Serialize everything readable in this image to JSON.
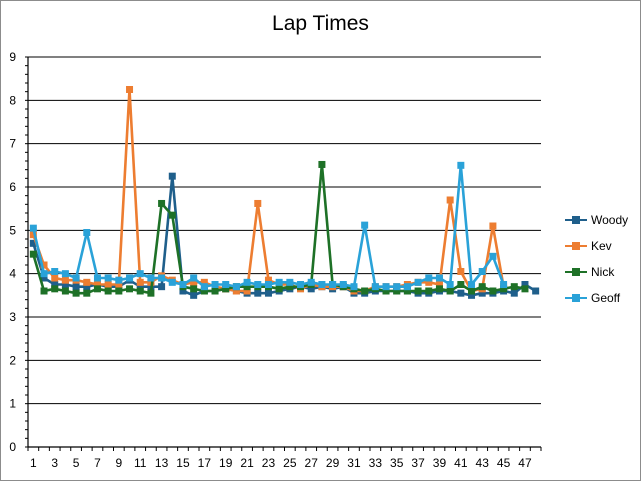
{
  "chart_data": {
    "type": "line",
    "title": "Lap Times",
    "xlabel": "",
    "ylabel": "",
    "ylim": [
      0,
      9
    ],
    "y_ticks": [
      "0",
      "1",
      "2",
      "3",
      "4",
      "5",
      "6",
      "7",
      "8",
      "9"
    ],
    "x": [
      1,
      2,
      3,
      4,
      5,
      6,
      7,
      8,
      9,
      10,
      11,
      12,
      13,
      14,
      15,
      16,
      17,
      18,
      19,
      20,
      21,
      22,
      23,
      24,
      25,
      26,
      27,
      28,
      29,
      30,
      31,
      32,
      33,
      34,
      35,
      36,
      37,
      38,
      39,
      40,
      41,
      42,
      43,
      44,
      45,
      46,
      47,
      48
    ],
    "x_tick_labels": [
      "1",
      "3",
      "5",
      "7",
      "9",
      "11",
      "13",
      "15",
      "17",
      "19",
      "21",
      "23",
      "25",
      "27",
      "29",
      "31",
      "33",
      "35",
      "37",
      "39",
      "41",
      "43",
      "45",
      "47"
    ],
    "grid": "horizontal",
    "legend_position": "right",
    "series": [
      {
        "name": "Woody",
        "color": "#1f5f8b",
        "values": [
          4.7,
          3.9,
          3.75,
          3.75,
          3.7,
          3.7,
          3.75,
          3.7,
          3.7,
          3.85,
          3.7,
          3.7,
          3.7,
          6.25,
          3.6,
          3.5,
          3.6,
          3.6,
          3.65,
          3.6,
          3.55,
          3.55,
          3.55,
          3.6,
          3.65,
          3.7,
          3.65,
          3.7,
          3.65,
          3.7,
          3.55,
          3.55,
          3.6,
          3.6,
          3.6,
          3.6,
          3.55,
          3.55,
          3.6,
          3.6,
          3.55,
          3.5,
          3.55,
          3.55,
          3.6,
          3.55,
          3.75,
          3.6
        ]
      },
      {
        "name": "Kev",
        "color": "#ed7d31",
        "values": [
          4.9,
          4.2,
          3.9,
          3.85,
          3.85,
          3.8,
          3.75,
          3.75,
          3.75,
          8.25,
          3.8,
          3.8,
          3.95,
          3.85,
          3.75,
          3.8,
          3.8,
          3.7,
          3.65,
          3.6,
          3.6,
          5.62,
          3.85,
          3.75,
          3.75,
          3.65,
          3.75,
          3.7,
          3.7,
          3.7,
          3.6,
          3.6,
          3.7,
          3.7,
          3.7,
          3.75,
          3.8,
          3.8,
          3.75,
          5.7,
          4.05,
          3.6,
          3.65,
          5.1,
          3.7,
          null,
          null,
          null
        ]
      },
      {
        "name": "Nick",
        "color": "#1e7127",
        "values": [
          4.45,
          3.6,
          3.65,
          3.6,
          3.55,
          3.55,
          3.65,
          3.6,
          3.6,
          3.65,
          3.6,
          3.55,
          5.62,
          5.35,
          3.7,
          3.65,
          3.6,
          3.6,
          3.65,
          3.7,
          3.7,
          3.7,
          3.7,
          3.65,
          3.7,
          3.7,
          3.75,
          6.52,
          3.75,
          3.7,
          3.65,
          3.6,
          3.65,
          3.6,
          3.6,
          3.6,
          3.6,
          3.6,
          3.65,
          3.6,
          3.75,
          3.6,
          3.7,
          3.6,
          3.65,
          3.7,
          3.65,
          null
        ]
      },
      {
        "name": "Geoff",
        "color": "#2aa2d8",
        "values": [
          5.05,
          4.0,
          4.05,
          4.0,
          3.9,
          4.95,
          3.9,
          3.9,
          3.85,
          3.9,
          4.0,
          3.9,
          3.9,
          3.8,
          3.75,
          3.9,
          3.7,
          3.75,
          3.75,
          3.7,
          3.8,
          3.75,
          3.75,
          3.8,
          3.8,
          3.75,
          3.8,
          3.75,
          3.75,
          3.75,
          3.7,
          5.12,
          3.7,
          3.7,
          3.7,
          3.7,
          3.8,
          3.9,
          3.9,
          3.75,
          6.5,
          3.75,
          4.05,
          4.4,
          3.75,
          null,
          null,
          null
        ]
      }
    ]
  }
}
